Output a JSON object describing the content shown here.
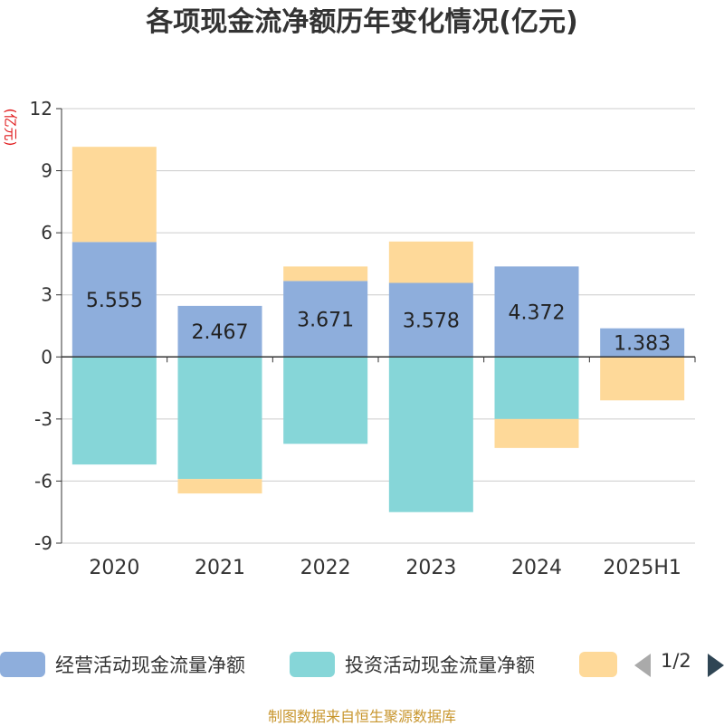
{
  "page": {
    "title": "各项现金流净额历年变化情况(亿元)",
    "unit_label": "(亿元)",
    "source": "制图数据来自恒生聚源数据库",
    "pager": {
      "text": "1/2"
    }
  },
  "legend": [
    {
      "label": "经营活动现金流量净额",
      "color": "#8eaedc"
    },
    {
      "label": "投资活动现金流量净额",
      "color": "#86d6d8"
    },
    {
      "label": "",
      "color": "#fed999"
    }
  ],
  "chart_data": {
    "type": "bar",
    "stacked": true,
    "categories": [
      "2020",
      "2021",
      "2022",
      "2023",
      "2024",
      "2025H1"
    ],
    "ylim": [
      -9,
      12
    ],
    "yticks": [
      12,
      9,
      6,
      3,
      0,
      -3,
      -6,
      -9
    ],
    "grid": true,
    "legend_position": "bottom",
    "series": [
      {
        "name": "经营活动现金流量净额",
        "color": "#8eaedc",
        "values": [
          5.555,
          2.467,
          3.671,
          3.578,
          4.372,
          1.383
        ],
        "labels": [
          "5.555",
          "2.467",
          "3.671",
          "3.578",
          "4.372",
          "1.383"
        ]
      },
      {
        "name": "投资活动现金流量净额",
        "color": "#86d6d8",
        "values": [
          -5.2,
          -5.9,
          -4.2,
          -7.5,
          -3.0,
          0
        ]
      },
      {
        "name": "",
        "color": "#fed999",
        "values": [
          4.6,
          -0.7,
          0.7,
          2.0,
          -1.4,
          -2.1
        ]
      }
    ]
  }
}
